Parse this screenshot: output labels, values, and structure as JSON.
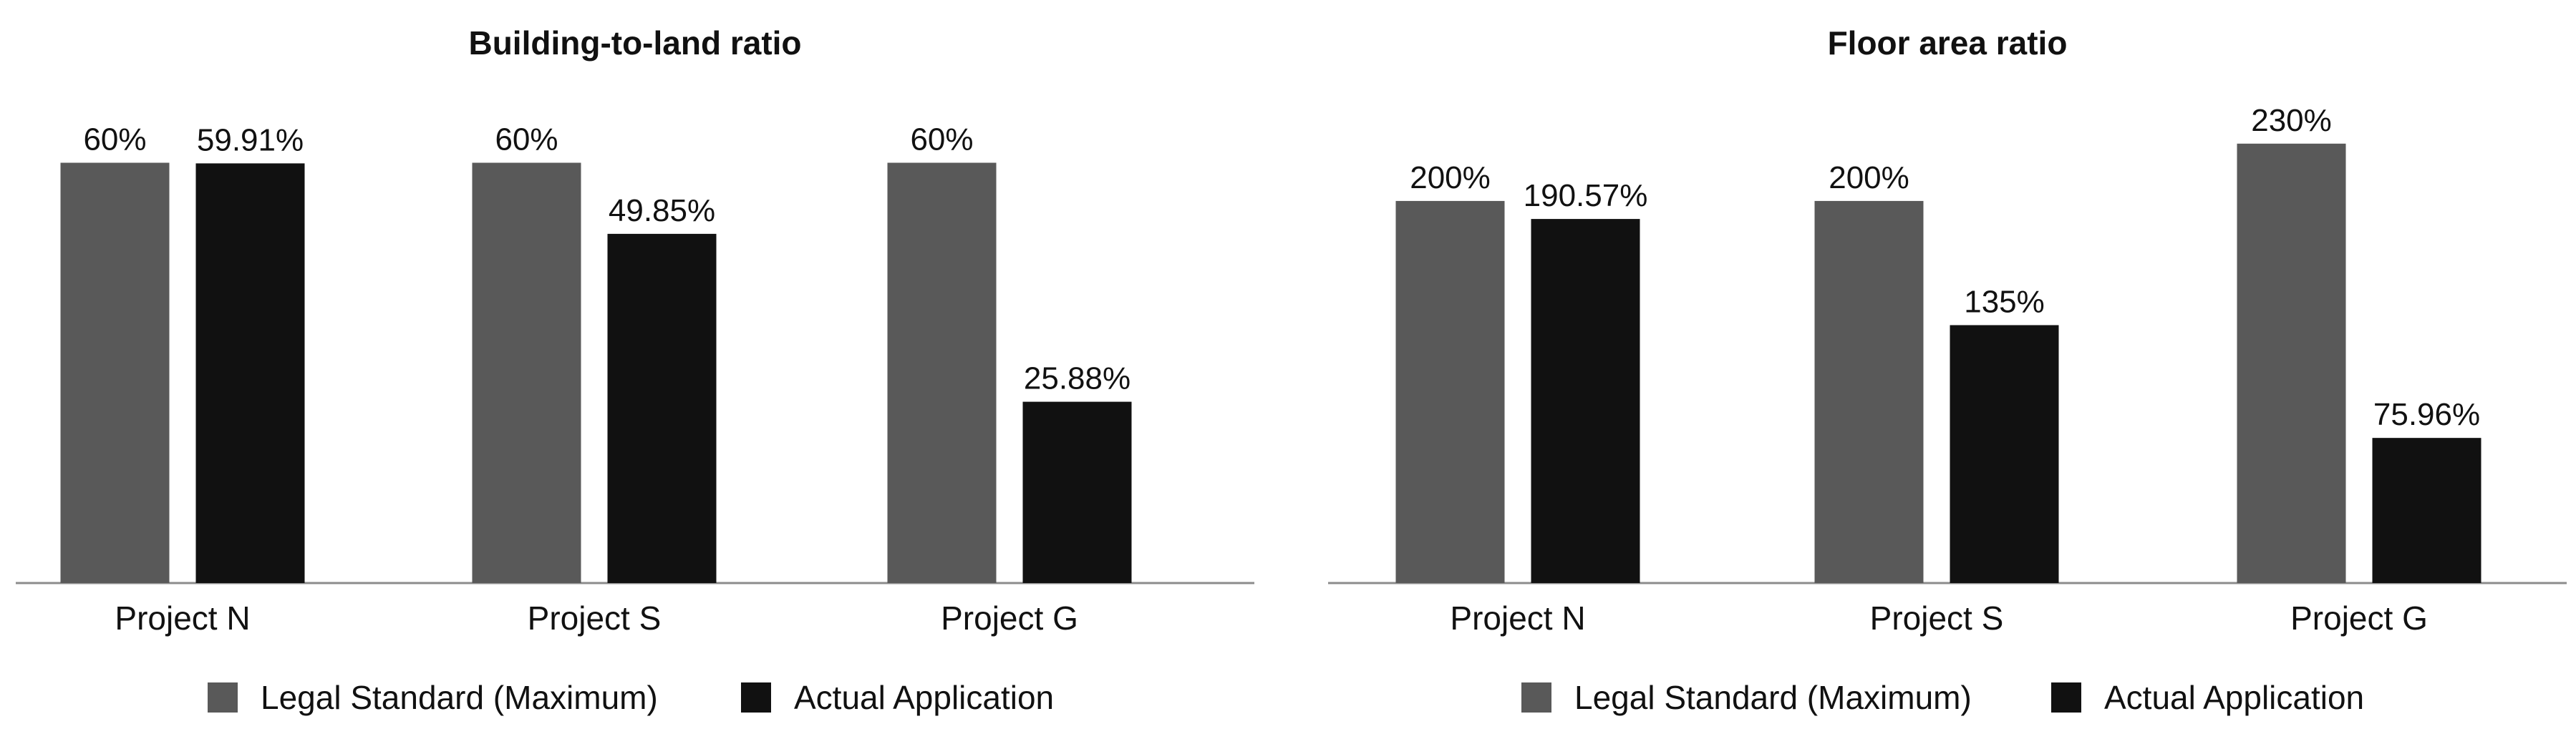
{
  "chart_data": [
    {
      "type": "bar",
      "title": "Building-to-land ratio",
      "categories": [
        "Project N",
        "Project S",
        "Project G"
      ],
      "series": [
        {
          "name": "Legal Standard (Maximum)",
          "color": "#595959",
          "values": [
            60,
            60,
            60
          ],
          "labels": [
            "60%",
            "60%",
            "60%"
          ]
        },
        {
          "name": "Actual Application",
          "color": "#111111",
          "values": [
            59.91,
            49.85,
            25.88
          ],
          "labels": [
            "59.91%",
            "49.85%",
            "25.88%"
          ]
        }
      ],
      "ylim": [
        0,
        72
      ],
      "xlabel": "",
      "ylabel": "",
      "grid": false,
      "legend": "bottom"
    },
    {
      "type": "bar",
      "title": "Floor area ratio",
      "categories": [
        "Project N",
        "Project S",
        "Project G"
      ],
      "series": [
        {
          "name": "Legal Standard (Maximum)",
          "color": "#595959",
          "values": [
            200,
            200,
            230
          ],
          "labels": [
            "200%",
            "200%",
            "230%"
          ]
        },
        {
          "name": "Actual Application",
          "color": "#111111",
          "values": [
            190.57,
            135,
            75.96
          ],
          "labels": [
            "190.57%",
            "135%",
            "75.96%"
          ]
        }
      ],
      "ylim": [
        0,
        264
      ],
      "xlabel": "",
      "ylabel": "",
      "grid": false,
      "legend": "bottom"
    }
  ]
}
